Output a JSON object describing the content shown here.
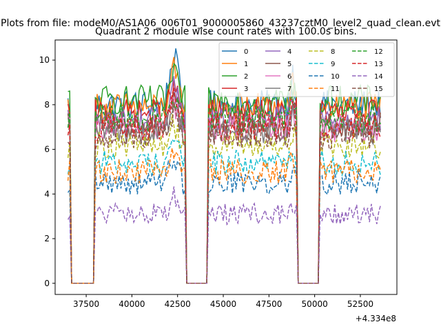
{
  "chart_data": {
    "type": "line",
    "suptitle": "Plots from file: modeM0/AS1A06_006T01_9000005860_43237cztM0_level2_quad_clean.evt",
    "title": "Quadrant 2 module wise count rates with 100.0s bins.",
    "xlabel": "",
    "ylabel": "",
    "x_offset_label": "+4.334e8",
    "xlim": [
      35800,
      54500
    ],
    "ylim": [
      -0.5,
      10.9
    ],
    "x_ticks": [
      37500,
      40000,
      42500,
      45000,
      47500,
      50000,
      52500
    ],
    "x_tick_labels": [
      "37500",
      "40000",
      "42500",
      "45000",
      "47500",
      "50000",
      "52500"
    ],
    "y_ticks": [
      0,
      2,
      4,
      6,
      8,
      10
    ],
    "y_tick_labels": [
      "0",
      "2",
      "4",
      "6",
      "8",
      "10"
    ],
    "grid": false,
    "legend_position": "top-right",
    "legend_columns": 4,
    "segments": [
      [
        36500,
        36600
      ],
      [
        38000,
        42900
      ],
      [
        44200,
        49000
      ],
      [
        50300,
        53600
      ]
    ],
    "gap_segments": [
      [
        36700,
        37900
      ],
      [
        43000,
        44100
      ],
      [
        49100,
        50200
      ]
    ],
    "series": [
      {
        "name": "0",
        "color": "#1f77b4",
        "dash": "solid",
        "level": 8.0,
        "peak": 10.35
      },
      {
        "name": "1",
        "color": "#ff7f0e",
        "dash": "solid",
        "level": 7.9,
        "peak": 9.5
      },
      {
        "name": "2",
        "color": "#2ca02c",
        "dash": "solid",
        "level": 8.2,
        "peak": 9.3
      },
      {
        "name": "3",
        "color": "#d62728",
        "dash": "solid",
        "level": 7.6,
        "peak": 8.8
      },
      {
        "name": "4",
        "color": "#9467bd",
        "dash": "solid",
        "level": 7.3,
        "peak": 9.0
      },
      {
        "name": "5",
        "color": "#8c564b",
        "dash": "solid",
        "level": 7.1,
        "peak": 8.4
      },
      {
        "name": "6",
        "color": "#e377c2",
        "dash": "solid",
        "level": 6.9,
        "peak": 8.2
      },
      {
        "name": "7",
        "color": "#7f7f7f",
        "dash": "solid",
        "level": 6.8,
        "peak": 8.0
      },
      {
        "name": "8",
        "color": "#bcbd22",
        "dash": "dashed",
        "level": 6.2,
        "peak": 7.2
      },
      {
        "name": "9",
        "color": "#17becf",
        "dash": "dashed",
        "level": 5.4,
        "peak": 6.6
      },
      {
        "name": "10",
        "color": "#1f77b4",
        "dash": "dashed",
        "level": 4.5,
        "peak": 5.8
      },
      {
        "name": "11",
        "color": "#ff7f0e",
        "dash": "dashed",
        "level": 5.0,
        "peak": 6.0
      },
      {
        "name": "12",
        "color": "#2ca02c",
        "dash": "dashed",
        "level": 7.4,
        "peak": 8.6
      },
      {
        "name": "13",
        "color": "#d62728",
        "dash": "dashed",
        "level": 7.0,
        "peak": 8.2
      },
      {
        "name": "14",
        "color": "#9467bd",
        "dash": "dashed",
        "level": 3.1,
        "peak": 4.0
      },
      {
        "name": "15",
        "color": "#8c564b",
        "dash": "dashed",
        "level": 6.6,
        "peak": 7.8
      }
    ]
  }
}
